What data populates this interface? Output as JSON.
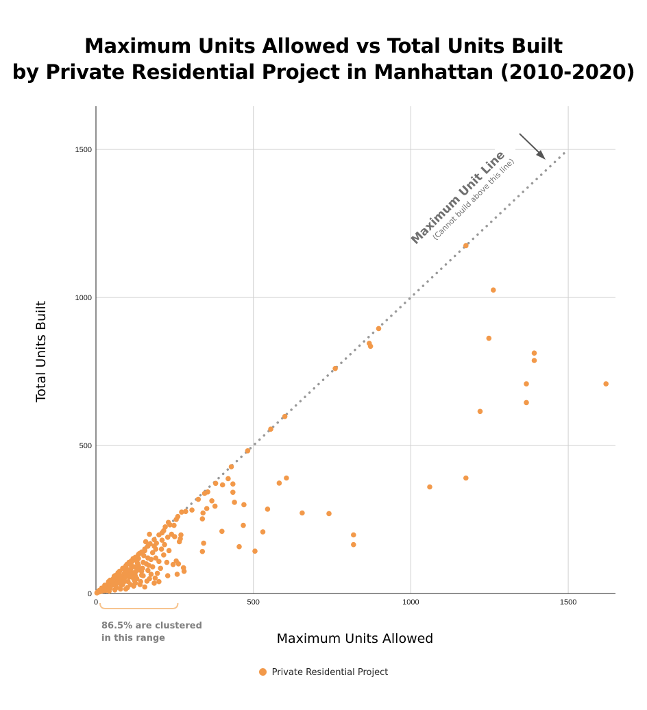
{
  "chart_data": {
    "type": "scatter",
    "title": [
      "Maximum Units Allowed vs Total Units Built",
      "by Private Residential Project in Manhattan (2010-2020)"
    ],
    "xlabel": "Maximum Units Allowed",
    "ylabel": "Total Units Built",
    "xlim": [
      0,
      1650
    ],
    "ylim": [
      0,
      1650
    ],
    "xticks": [
      0,
      500,
      1000,
      1500
    ],
    "yticks": [
      0,
      500,
      1000,
      1500
    ],
    "grid": true,
    "legend_position": "bottom-center",
    "point_color": "#f2994a",
    "series": [
      {
        "name": "Private Residential Project",
        "points": [
          [
            1175,
            1175
          ],
          [
            1262,
            1025
          ],
          [
            1248,
            862
          ],
          [
            1392,
            812
          ],
          [
            1392,
            787
          ],
          [
            1367,
            708
          ],
          [
            1620,
            708
          ],
          [
            1367,
            645
          ],
          [
            1220,
            615
          ],
          [
            1175,
            390
          ],
          [
            1060,
            360
          ],
          [
            898,
            895
          ],
          [
            868,
            845
          ],
          [
            872,
            835
          ],
          [
            760,
            760
          ],
          [
            600,
            598
          ],
          [
            555,
            555
          ],
          [
            482,
            482
          ],
          [
            430,
            428
          ],
          [
            605,
            390
          ],
          [
            582,
            373
          ],
          [
            655,
            272
          ],
          [
            740,
            270
          ],
          [
            818,
            198
          ],
          [
            818,
            165
          ],
          [
            545,
            285
          ],
          [
            530,
            208
          ],
          [
            505,
            143
          ],
          [
            470,
            300
          ],
          [
            468,
            230
          ],
          [
            455,
            158
          ],
          [
            435,
            370
          ],
          [
            435,
            342
          ],
          [
            440,
            308
          ],
          [
            420,
            388
          ],
          [
            402,
            367
          ],
          [
            400,
            210
          ],
          [
            380,
            372
          ],
          [
            378,
            295
          ],
          [
            368,
            313
          ],
          [
            355,
            343
          ],
          [
            352,
            287
          ],
          [
            345,
            338
          ],
          [
            338,
            252
          ],
          [
            338,
            142
          ],
          [
            342,
            170
          ],
          [
            340,
            272
          ],
          [
            325,
            318
          ],
          [
            305,
            282
          ],
          [
            285,
            277
          ],
          [
            280,
            75
          ],
          [
            278,
            87
          ],
          [
            270,
            198
          ],
          [
            268,
            185
          ],
          [
            265,
            175
          ],
          [
            262,
            100
          ],
          [
            258,
            65
          ],
          [
            255,
            110
          ],
          [
            250,
            192
          ],
          [
            240,
            200
          ],
          [
            245,
            98
          ],
          [
            232,
            145
          ],
          [
            228,
            60
          ],
          [
            225,
            105
          ],
          [
            220,
            225
          ],
          [
            218,
            165
          ],
          [
            215,
            130
          ],
          [
            210,
            205
          ],
          [
            210,
            180
          ],
          [
            205,
            85
          ],
          [
            200,
            108
          ],
          [
            195,
            68
          ],
          [
            190,
            150
          ],
          [
            188,
            52
          ],
          [
            185,
            160
          ],
          [
            180,
            138
          ],
          [
            175,
            115
          ],
          [
            170,
            200
          ],
          [
            168,
            95
          ],
          [
            165,
            78
          ],
          [
            162,
            42
          ],
          [
            158,
            175
          ],
          [
            155,
            145
          ],
          [
            152,
            128
          ],
          [
            150,
            105
          ],
          [
            148,
            85
          ],
          [
            145,
            62
          ],
          [
            142,
            40
          ],
          [
            140,
            30
          ],
          [
            138,
            135
          ],
          [
            135,
            118
          ],
          [
            132,
            102
          ],
          [
            130,
            90
          ],
          [
            128,
            75
          ],
          [
            125,
            60
          ],
          [
            122,
            45
          ],
          [
            120,
            25
          ],
          [
            118,
            118
          ],
          [
            115,
            108
          ],
          [
            112,
            95
          ],
          [
            110,
            82
          ],
          [
            108,
            70
          ],
          [
            105,
            55
          ],
          [
            102,
            40
          ],
          [
            100,
            20
          ],
          [
            98,
            98
          ],
          [
            95,
            88
          ],
          [
            92,
            78
          ],
          [
            90,
            68
          ],
          [
            88,
            58
          ],
          [
            85,
            48
          ],
          [
            82,
            38
          ],
          [
            80,
            28
          ],
          [
            78,
            15
          ],
          [
            75,
            75
          ],
          [
            72,
            65
          ],
          [
            70,
            55
          ],
          [
            68,
            45
          ],
          [
            65,
            35
          ],
          [
            62,
            25
          ],
          [
            60,
            12
          ],
          [
            58,
            58
          ],
          [
            55,
            50
          ],
          [
            52,
            42
          ],
          [
            50,
            34
          ],
          [
            48,
            26
          ],
          [
            45,
            18
          ],
          [
            42,
            8
          ],
          [
            40,
            40
          ],
          [
            38,
            32
          ],
          [
            35,
            25
          ],
          [
            32,
            18
          ],
          [
            30,
            10
          ],
          [
            28,
            28
          ],
          [
            25,
            20
          ],
          [
            22,
            14
          ],
          [
            20,
            8
          ],
          [
            18,
            18
          ],
          [
            15,
            12
          ],
          [
            12,
            6
          ],
          [
            10,
            10
          ],
          [
            8,
            5
          ],
          [
            5,
            5
          ],
          [
            3,
            2
          ],
          [
            60,
            60
          ],
          [
            65,
            62
          ],
          [
            85,
            85
          ],
          [
            105,
            105
          ],
          [
            125,
            122
          ],
          [
            145,
            140
          ],
          [
            165,
            160
          ],
          [
            185,
            182
          ],
          [
            200,
            198
          ],
          [
            215,
            212
          ],
          [
            235,
            232
          ],
          [
            255,
            250
          ],
          [
            45,
            45
          ],
          [
            70,
            70
          ],
          [
            95,
            93
          ],
          [
            112,
            110
          ],
          [
            135,
            132
          ],
          [
            155,
            150
          ],
          [
            172,
            168
          ],
          [
            192,
            170
          ],
          [
            208,
            150
          ],
          [
            228,
            190
          ],
          [
            248,
            230
          ],
          [
            90,
            40
          ],
          [
            100,
            60
          ],
          [
            110,
            30
          ],
          [
            120,
            70
          ],
          [
            130,
            50
          ],
          [
            140,
            80
          ],
          [
            150,
            60
          ],
          [
            160,
            100
          ],
          [
            170,
            50
          ],
          [
            180,
            90
          ],
          [
            190,
            120
          ],
          [
            200,
            40
          ],
          [
            75,
            50
          ],
          [
            85,
            30
          ],
          [
            95,
            15
          ],
          [
            105,
            80
          ],
          [
            115,
            55
          ],
          [
            125,
            35
          ],
          [
            135,
            95
          ],
          [
            145,
            75
          ],
          [
            155,
            22
          ],
          [
            165,
            120
          ],
          [
            175,
            65
          ],
          [
            185,
            35
          ],
          [
            55,
            30
          ],
          [
            65,
            20
          ],
          [
            75,
            35
          ],
          [
            80,
            60
          ],
          [
            90,
            50
          ],
          [
            100,
            75
          ],
          [
            110,
            65
          ],
          [
            120,
            90
          ],
          [
            130,
            110
          ],
          [
            260,
            260
          ],
          [
            272,
            275
          ],
          [
            230,
            240
          ]
        ]
      }
    ],
    "reference_line": {
      "x": [
        0,
        1500
      ],
      "y": [
        0,
        1500
      ],
      "label": "Maximum Unit Line",
      "sublabel": "(Cannot build above this line)"
    },
    "annotation": {
      "text_lines": [
        "86.5% are clustered",
        "in this range"
      ],
      "bracket_x": [
        0,
        260
      ]
    }
  }
}
